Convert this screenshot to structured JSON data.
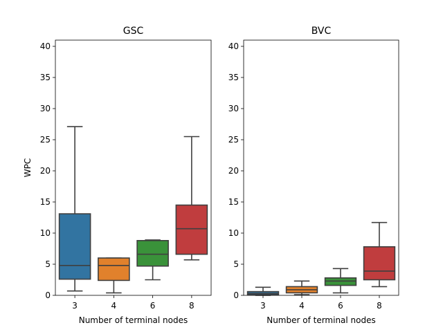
{
  "chart_data": [
    {
      "type": "box",
      "title": "GSC",
      "xlabel": "Number of terminal nodes",
      "ylabel": "WPC",
      "ylim": [
        0,
        41
      ],
      "yticks": [
        0,
        5,
        10,
        15,
        20,
        25,
        30,
        35,
        40
      ],
      "categories": [
        "3",
        "4",
        "6",
        "8"
      ],
      "boxes": [
        {
          "category": "3",
          "whisker_low": 0.7,
          "q1": 2.6,
          "median": 4.8,
          "q3": 13.1,
          "whisker_high": 27.1,
          "color": "#3274a1"
        },
        {
          "category": "4",
          "whisker_low": 0.4,
          "q1": 2.4,
          "median": 4.8,
          "q3": 6.0,
          "whisker_high": 6.0,
          "color": "#e1812c"
        },
        {
          "category": "6",
          "whisker_low": 2.5,
          "q1": 4.7,
          "median": 6.6,
          "q3": 8.8,
          "whisker_high": 8.9,
          "color": "#3a923a"
        },
        {
          "category": "8",
          "whisker_low": 5.7,
          "q1": 6.6,
          "median": 10.7,
          "q3": 14.5,
          "whisker_high": 25.5,
          "color": "#c03d3e"
        }
      ]
    },
    {
      "type": "box",
      "title": "BVC",
      "xlabel": "Number of terminal nodes",
      "ylabel": "",
      "ylim": [
        0,
        41
      ],
      "yticks": [
        0,
        5,
        10,
        15,
        20,
        25,
        30,
        35,
        40
      ],
      "categories": [
        "3",
        "4",
        "6",
        "8"
      ],
      "boxes": [
        {
          "category": "3",
          "whisker_low": 0.0,
          "q1": 0.1,
          "median": 0.3,
          "q3": 0.6,
          "whisker_high": 1.3,
          "color": "#3274a1"
        },
        {
          "category": "4",
          "whisker_low": 0.1,
          "q1": 0.4,
          "median": 0.9,
          "q3": 1.4,
          "whisker_high": 2.3,
          "color": "#e1812c"
        },
        {
          "category": "6",
          "whisker_low": 0.4,
          "q1": 1.6,
          "median": 2.3,
          "q3": 2.8,
          "whisker_high": 4.3,
          "color": "#3a923a"
        },
        {
          "category": "8",
          "whisker_low": 1.4,
          "q1": 2.5,
          "median": 3.9,
          "q3": 7.8,
          "whisker_high": 11.7,
          "color": "#c03d3e"
        }
      ]
    }
  ]
}
